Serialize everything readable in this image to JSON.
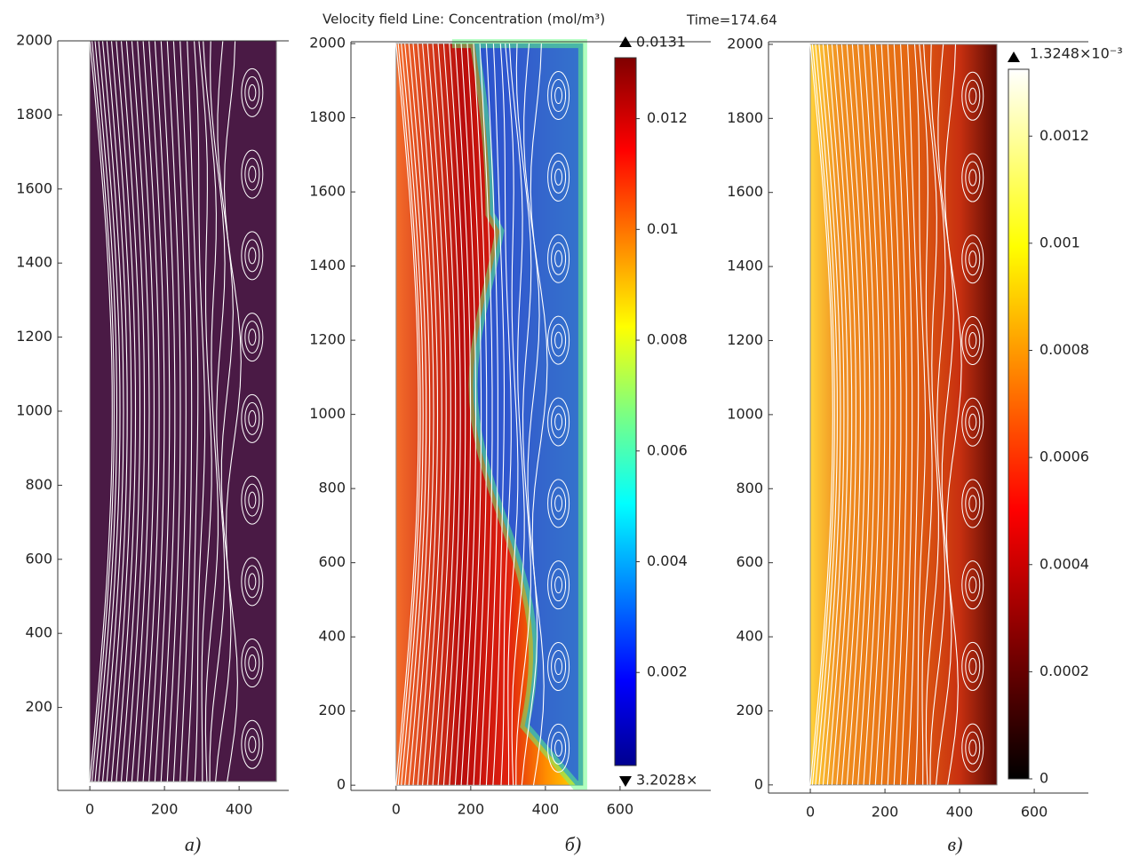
{
  "header": {
    "title": "Velocity field  Line: Concentration (mol/m³)",
    "time": "Time=174.64"
  },
  "chart_data": [
    {
      "type": "field",
      "panel_label": "а)",
      "colormap": "none",
      "xlim": [
        -86,
        533
      ],
      "ylim": [
        -24,
        2000
      ],
      "xticks": [
        0,
        200,
        400
      ],
      "yticks": [
        200,
        400,
        600,
        800,
        1000,
        1200,
        1400,
        1600,
        1800,
        2000
      ]
    },
    {
      "type": "field",
      "panel_label": "б)",
      "colormap": "jet",
      "xlim": [
        -121,
        843
      ],
      "ylim": [
        -14,
        2005
      ],
      "xticks": [
        0,
        200,
        400,
        600
      ],
      "yticks": [
        0,
        200,
        400,
        600,
        800,
        1000,
        1200,
        1400,
        1600,
        1800,
        2000
      ],
      "clim": [
        0.00032,
        0.0131
      ],
      "colorbar_max_label": "0.0131",
      "colorbar_min_label": "3.2028×",
      "cticks": [
        0.002,
        0.004,
        0.006,
        0.008,
        0.01,
        0.012
      ]
    },
    {
      "type": "field",
      "panel_label": "в)",
      "colormap": "hot",
      "xlim": [
        -112,
        745
      ],
      "ylim": [
        -22,
        2007
      ],
      "xticks": [
        0,
        200,
        400,
        600
      ],
      "yticks": [
        0,
        200,
        400,
        600,
        800,
        1000,
        1200,
        1400,
        1600,
        1800,
        2000
      ],
      "clim": [
        0,
        0.0013248
      ],
      "colorbar_max_label": "1.3248×10⁻³",
      "cticks": [
        0,
        0.0002,
        0.0004,
        0.0006,
        0.0008,
        0.001,
        0.0012
      ]
    }
  ]
}
